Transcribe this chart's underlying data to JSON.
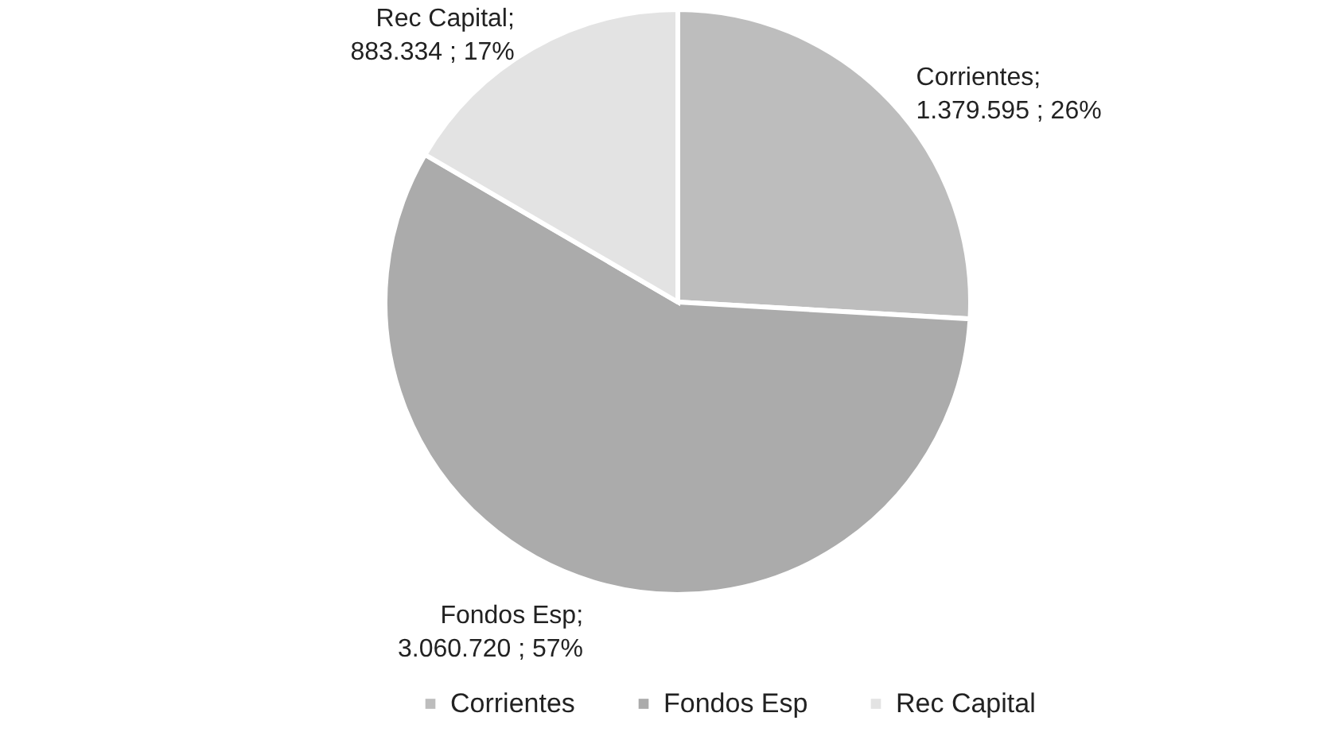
{
  "chart_data": {
    "type": "pie",
    "categories": [
      "Corrientes",
      "Fondos Esp",
      "Rec Capital"
    ],
    "values": [
      1379595,
      3060720,
      883334
    ],
    "colors": [
      "#bdbdbd",
      "#ababab",
      "#e3e3e3"
    ],
    "value_labels": [
      "Corrientes;\n1.379.595 ; 26%",
      "Fondos Esp;\n3.060.720 ; 57%",
      "Rec Capital;\n883.334 ; 17%"
    ],
    "legend": "bottom"
  }
}
